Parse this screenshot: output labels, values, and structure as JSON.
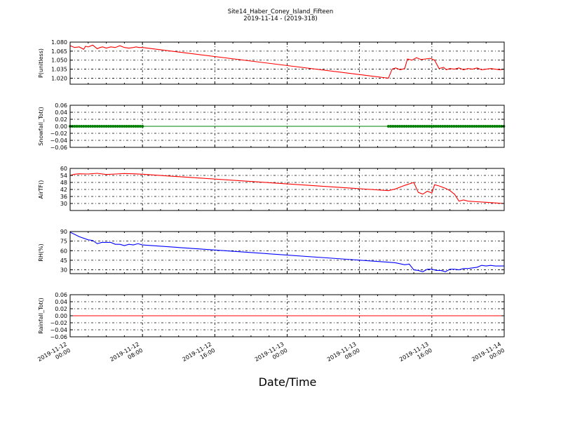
{
  "title": "Site14_Haber_Coney_Island_Fifteen",
  "subtitle": "2019-11-14 - (2019-318)",
  "xlabel": "Date/Time",
  "x_ticks": [
    {
      "line1": "2019-11-12",
      "line2": "00:00"
    },
    {
      "line1": "2019-11-12",
      "line2": "08:00"
    },
    {
      "line1": "2019-11-12",
      "line2": "16:00"
    },
    {
      "line1": "2019-11-13",
      "line2": "00:00"
    },
    {
      "line1": "2019-11-13",
      "line2": "08:00"
    },
    {
      "line1": "2019-11-13",
      "line2": "16:00"
    },
    {
      "line1": "2019-11-14",
      "line2": "00:00"
    }
  ],
  "chart_data": [
    {
      "type": "line",
      "ylabel": "P(unitless)",
      "color": "#ff0000",
      "ylim": [
        1.01,
        1.08
      ],
      "yticks": [
        "1.080",
        "1.065",
        "1.050",
        "1.035",
        "1.020"
      ],
      "ytick_values": [
        1.08,
        1.065,
        1.05,
        1.035,
        1.02
      ],
      "grid": true,
      "x_hours": [
        0,
        0.5,
        1,
        1.5,
        1.7,
        2,
        2.5,
        3,
        3.3,
        3.6,
        4,
        4.5,
        5,
        5.5,
        6,
        6.5,
        7,
        7.3,
        7.6,
        8,
        35.2,
        35.6,
        36,
        36.5,
        37,
        37.3,
        37.8,
        38.3,
        38.8,
        39.3,
        39.8,
        40.3,
        40.8,
        41.3,
        41.6,
        42,
        42.5,
        43,
        43.5,
        44,
        44.5,
        45,
        45.5,
        46,
        46.5,
        47,
        47.5,
        48
      ],
      "values": [
        1.074,
        1.071,
        1.072,
        1.068,
        1.073,
        1.072,
        1.075,
        1.069,
        1.071,
        1.072,
        1.07,
        1.072,
        1.071,
        1.074,
        1.071,
        1.07,
        1.071,
        1.072,
        1.071,
        1.071,
        1.02,
        1.035,
        1.037,
        1.034,
        1.036,
        1.052,
        1.05,
        1.054,
        1.051,
        1.052,
        1.053,
        1.05,
        1.036,
        1.038,
        1.034,
        1.036,
        1.035,
        1.037,
        1.034,
        1.036,
        1.035,
        1.037,
        1.034,
        1.035,
        1.036,
        1.035,
        1.034,
        1.035
      ]
    },
    {
      "type": "scatter",
      "ylabel": "Snowfall_Tot()",
      "color": "#008000",
      "ylim": [
        -0.06,
        0.06
      ],
      "yticks": [
        "0.06",
        "0.04",
        "0.02",
        "0.00",
        "−0.02",
        "−0.04",
        "−0.06"
      ],
      "ytick_values": [
        0.06,
        0.04,
        0.02,
        0.0,
        -0.02,
        -0.04,
        -0.06
      ],
      "grid": true,
      "constant_value": 0.0,
      "marker_segments": [
        [
          0,
          8
        ],
        [
          35.2,
          48
        ]
      ],
      "marker_step_hours": 0.25
    },
    {
      "type": "line",
      "ylabel": "AirTF()",
      "color": "#ff0000",
      "ylim": [
        24,
        60
      ],
      "yticks": [
        "60",
        "54",
        "48",
        "42",
        "36",
        "30"
      ],
      "ytick_values": [
        60,
        54,
        48,
        42,
        36,
        30
      ],
      "grid": true,
      "x_hours": [
        0,
        0.5,
        1,
        2,
        3,
        4,
        5,
        6,
        7,
        8,
        35.2,
        36,
        37,
        38,
        38.5,
        39,
        39.5,
        40,
        40.3,
        40.8,
        41.5,
        42,
        42.5,
        43,
        43.5,
        44,
        45,
        46,
        47,
        48
      ],
      "values": [
        54,
        55,
        55.4,
        55.2,
        55.8,
        54.8,
        55.2,
        55.6,
        55.4,
        55.0,
        41,
        42.5,
        45.5,
        48,
        39.5,
        38,
        40.5,
        39,
        46,
        45,
        43,
        41,
        38,
        32,
        33,
        32,
        31.5,
        31,
        30.5,
        30
      ]
    },
    {
      "type": "line",
      "ylabel": "RH(%)",
      "color": "#0000ff",
      "ylim": [
        24,
        90
      ],
      "yticks": [
        "90",
        "75",
        "60",
        "45",
        "30"
      ],
      "ytick_values": [
        90,
        75,
        60,
        45,
        30
      ],
      "grid": true,
      "x_hours": [
        0,
        1,
        2,
        2.5,
        3,
        3.5,
        4,
        4.5,
        5,
        5.5,
        6,
        6.5,
        7,
        7.5,
        8,
        35.2,
        36,
        37,
        37.5,
        38,
        38.5,
        39,
        39.5,
        40,
        40.5,
        41,
        41.5,
        42,
        42.5,
        43,
        43.5,
        44,
        44.5,
        45,
        45.5,
        46,
        46.5,
        47,
        47.5,
        48
      ],
      "values": [
        89,
        82,
        77,
        76,
        71,
        73,
        73,
        73,
        70,
        70,
        68,
        70,
        69,
        71,
        69,
        42,
        41,
        38,
        39,
        30,
        29,
        27,
        31,
        31,
        29,
        29,
        27,
        31,
        31,
        30,
        32,
        32,
        33,
        34,
        37,
        36,
        37,
        36,
        36,
        36
      ]
    },
    {
      "type": "line",
      "ylabel": "Rainfall_Tot()",
      "color": "#ff0000",
      "ylim": [
        -0.06,
        0.06
      ],
      "yticks": [
        "0.06",
        "0.04",
        "0.02",
        "0.00",
        "−0.02",
        "−0.04",
        "−0.06"
      ],
      "ytick_values": [
        0.06,
        0.04,
        0.02,
        0.0,
        -0.02,
        -0.04,
        -0.06
      ],
      "grid": true,
      "x_hours": [
        0,
        48
      ],
      "values": [
        0.0,
        0.0
      ]
    }
  ]
}
